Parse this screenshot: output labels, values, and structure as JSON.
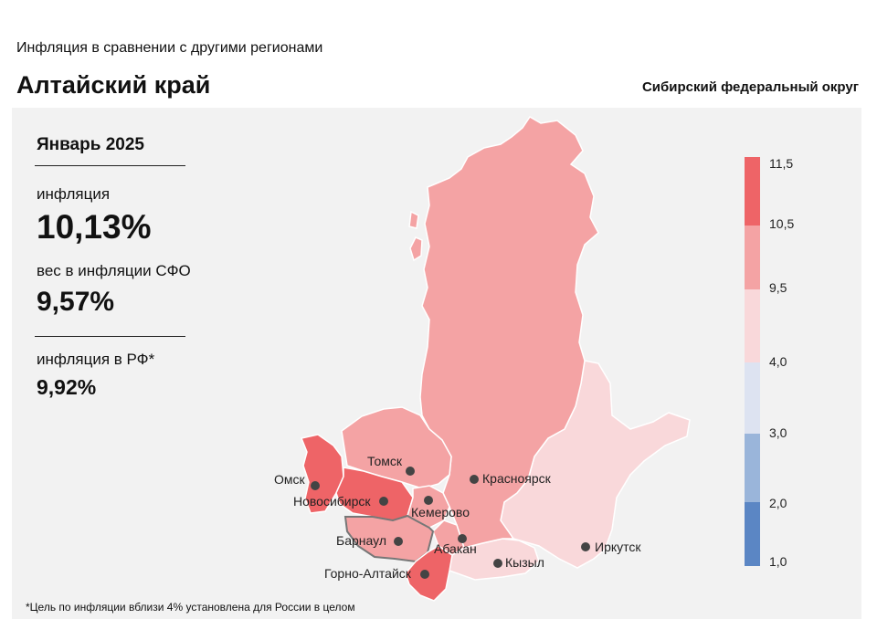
{
  "header": {
    "subtitle": "Инфляция  в сравнении  с другими  регионами",
    "title": "Алтайский край",
    "district": "Сибирский федеральный округ"
  },
  "stats": {
    "period": "Январь 2025",
    "inflation_label": "инфляция",
    "inflation_value": "10,13%",
    "weight_label": "вес в инфляции  СФО",
    "weight_value": "9,57%",
    "rf_label": "инфляция  в РФ*",
    "rf_value": "9,92%"
  },
  "cities": {
    "omsk": "Омск",
    "novosibirsk": "Новосибирск",
    "tomsk": "Томск",
    "kemerovo": "Кемерово",
    "krasnoyarsk": "Красноярск",
    "barnaul": "Барнаул",
    "abakan": "Абакан",
    "gorno_altaysk": "Горно-Алтайск",
    "kyzyl": "Кызыл",
    "irkutsk": "Иркутск"
  },
  "legend": {
    "ticks": [
      "11,5",
      "10,5",
      "9,5",
      "4,0",
      "3,0",
      "2,0",
      "1,0"
    ],
    "colors": {
      "band_10_5_11_5": "#ee6467",
      "band_9_5_10_5": "#f4a3a4",
      "band_4_0_9_5": "#f9d8da",
      "band_3_0_4_0": "#dde3f1",
      "band_2_0_3_0": "#9ab5da",
      "band_1_0_2_0": "#5b86c4"
    }
  },
  "footnote": "*Цель по инфляции вблизи 4% установлена для России в целом"
}
